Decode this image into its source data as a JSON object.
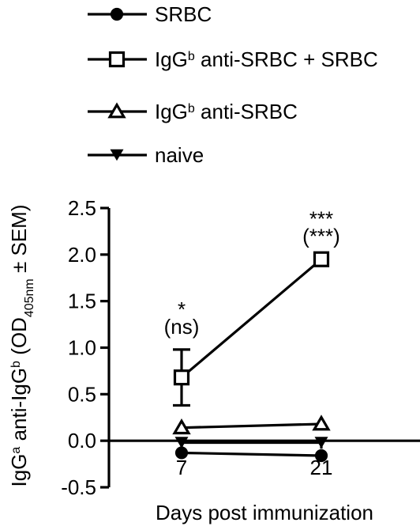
{
  "chart_data": {
    "type": "line",
    "xlabel": "Days post immunization",
    "ylabel": {
      "prefix": "IgG",
      "sup1": "a",
      "mid": " anti-IgG",
      "sup2": "b",
      "open": " (OD",
      "sub": "405nm",
      "close": " ± SEM)"
    },
    "ylim": [
      -0.5,
      2.5
    ],
    "yticks": [
      "-0.5",
      "0.0",
      "0.5",
      "1.0",
      "1.5",
      "2.0",
      "2.5"
    ],
    "x_categories": [
      "7",
      "21"
    ],
    "legend_position": "top",
    "series": [
      {
        "marker": "circle",
        "legend": {
          "base": "SRBC"
        },
        "values": [
          -0.13,
          -0.16
        ],
        "errors": [
          0.0,
          0.0
        ]
      },
      {
        "marker": "square",
        "legend": {
          "base": "IgG",
          "sup": "b",
          "rest": " anti-SRBC + SRBC"
        },
        "values": [
          0.68,
          1.95
        ],
        "errors": [
          0.3,
          0.0
        ]
      },
      {
        "marker": "triangle-up",
        "legend": {
          "base": "IgG",
          "sup": "b",
          "rest": " anti-SRBC"
        },
        "values": [
          0.14,
          0.18
        ],
        "errors": [
          0.0,
          0.0
        ]
      },
      {
        "marker": "triangle-down",
        "legend": {
          "base": "naive"
        },
        "values": [
          -0.02,
          -0.02
        ],
        "errors": [
          0.0,
          0.0
        ]
      }
    ],
    "annotations": [
      {
        "x_index": 0,
        "lines": [
          "*",
          "(ns)"
        ]
      },
      {
        "x_index": 1,
        "lines": [
          "***",
          "(***)"
        ]
      }
    ]
  }
}
